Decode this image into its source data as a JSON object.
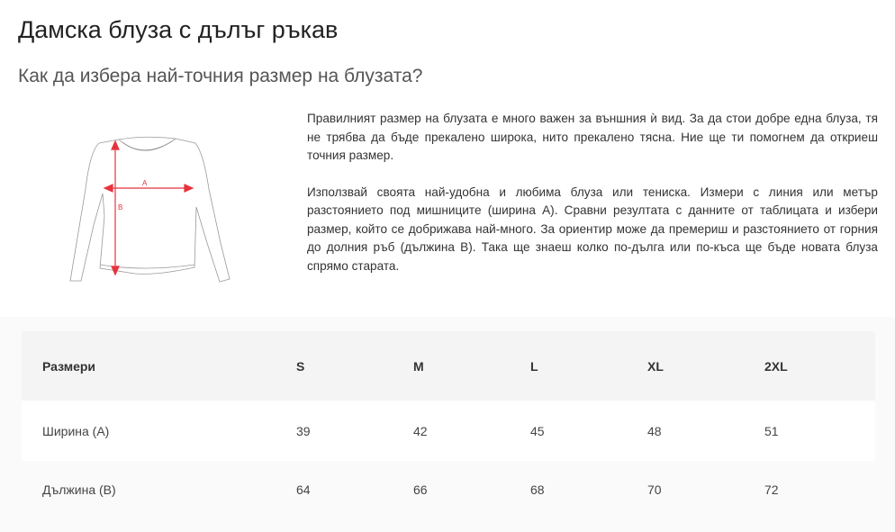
{
  "title": "Дамска блуза с дълъг ръкав",
  "subtitle": "Как да избера най-точния размер на блузата?",
  "illustration": {
    "label_a": "A",
    "label_b": "B",
    "arrow_color": "#e8323c"
  },
  "paragraphs": [
    "Правилният размер на блузата е много важен за външния ѝ вид. За да стои добре една блуза, тя не трябва да бъде прекалено широка, нито прекалено тясна. Ние ще ти помогнем да откриеш точния размер.",
    "Използвай своята най-удобна и любима блуза или тениска. Измери с линия или метър разстоянието под мишниците (ширина А). Сравни резултата с данните от таблицата и избери размер, който се добрижава най-много. За ориентир може да премериш и разстоянието от горния до долния ръб (дължина В). Така ще знаеш колко по-дълга или по-къса ще бъде новата блуза спрямо старата."
  ],
  "table": {
    "headers": [
      "Размери",
      "S",
      "M",
      "L",
      "XL",
      "2XL"
    ],
    "rows": [
      [
        "Ширина (А)",
        "39",
        "42",
        "45",
        "48",
        "51"
      ],
      [
        "Дължина (В)",
        "64",
        "66",
        "68",
        "70",
        "72"
      ]
    ]
  }
}
